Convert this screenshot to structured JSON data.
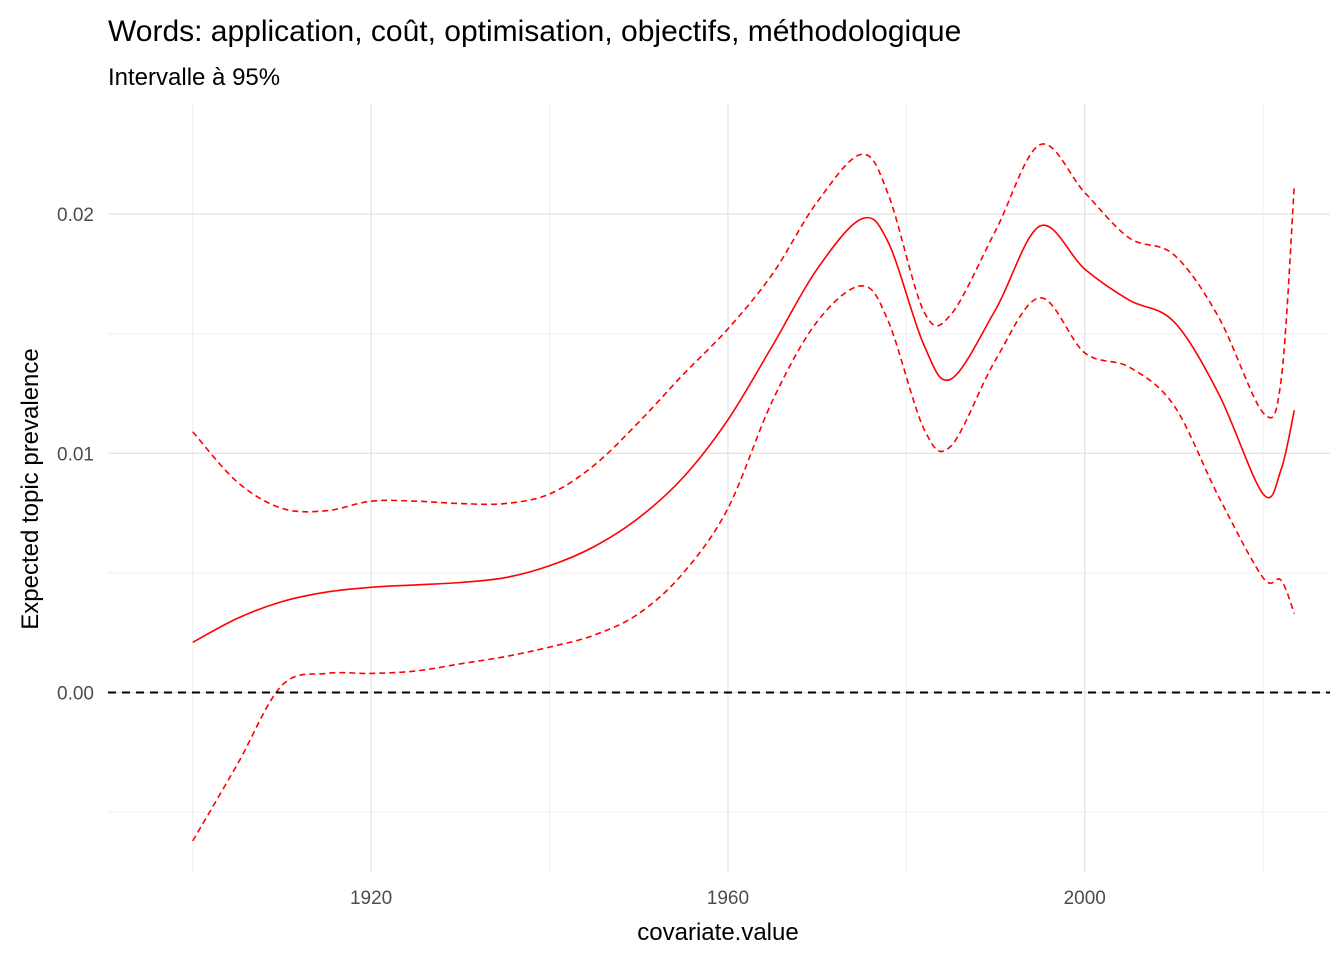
{
  "title": "Words: application, coût, optimisation, objectifs, méthodologique",
  "subtitle": "Intervalle à 95%",
  "chart_data": {
    "type": "line",
    "title": "Words: application, coût, optimisation, objectifs, méthodologique",
    "subtitle": "Intervalle à 95%",
    "xlabel": "covariate.value",
    "ylabel": "Expected topic prevalence",
    "xlim": [
      1890.5,
      2027.5
    ],
    "ylim": [
      -0.0075,
      0.0246
    ],
    "x_ticks": [
      1920,
      1960,
      2000
    ],
    "x_tick_labels": [
      "1920",
      "1960",
      "2000"
    ],
    "y_ticks": [
      0.0,
      0.01,
      0.02
    ],
    "y_tick_labels": [
      "0.00",
      "0.01",
      "0.02"
    ],
    "grid": true,
    "reference_line": {
      "y": 0.0,
      "style": "dashed",
      "color": "#000000"
    },
    "color": "#ff0000",
    "x": [
      1900,
      1905,
      1910,
      1915,
      1920,
      1925,
      1930,
      1935,
      1940,
      1945,
      1950,
      1955,
      1960,
      1965,
      1970,
      1975,
      1978,
      1982,
      1985,
      1990,
      1995,
      2000,
      2005,
      2010,
      2015,
      2020,
      2022,
      2023.5
    ],
    "series": [
      {
        "name": "",
        "style": "solid",
        "values": [
          0.0021,
          0.0031,
          0.0038,
          0.0042,
          0.0044,
          0.0045,
          0.0046,
          0.0048,
          0.0053,
          0.0061,
          0.0073,
          0.009,
          0.0114,
          0.0145,
          0.0177,
          0.0198,
          0.0188,
          0.0145,
          0.0131,
          0.016,
          0.0195,
          0.0177,
          0.0164,
          0.0155,
          0.0125,
          0.0083,
          0.0093,
          0.0118
        ]
      },
      {
        "name": "",
        "style": "dashed",
        "values": [
          0.0109,
          0.0088,
          0.0077,
          0.0076,
          0.008,
          0.008,
          0.0079,
          0.0079,
          0.0083,
          0.0095,
          0.0113,
          0.0133,
          0.0152,
          0.0175,
          0.0205,
          0.0225,
          0.0208,
          0.0159,
          0.0158,
          0.0193,
          0.0229,
          0.0209,
          0.019,
          0.0183,
          0.0157,
          0.0117,
          0.013,
          0.0212
        ]
      },
      {
        "name": "",
        "style": "dashed",
        "values": [
          -0.0062,
          -0.003,
          0.0003,
          0.0008,
          0.0008,
          0.0009,
          0.0012,
          0.0015,
          0.0019,
          0.0024,
          0.0033,
          0.005,
          0.0077,
          0.0122,
          0.0155,
          0.017,
          0.0155,
          0.011,
          0.0103,
          0.0139,
          0.0165,
          0.0142,
          0.0136,
          0.012,
          0.0082,
          0.0048,
          0.0047,
          0.0033
        ]
      }
    ]
  }
}
